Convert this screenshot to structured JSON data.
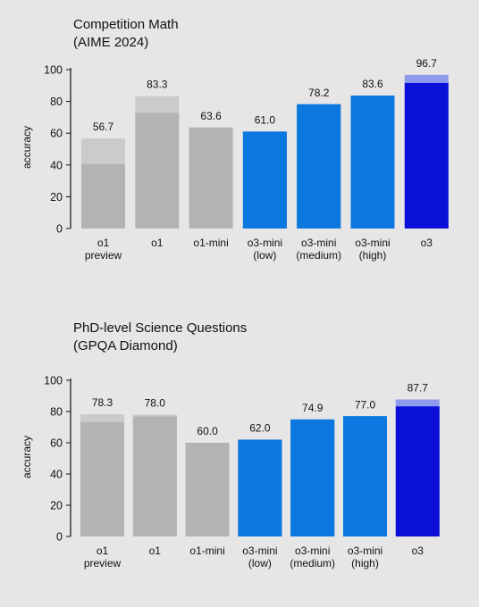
{
  "colors": {
    "gray_solid": "#b3b3b3",
    "gray_light": "#cbcbcb",
    "blue_o3mini": "#0a78de",
    "blue_o3": "#0a10d8",
    "blue_o3_light": "#8e9bea",
    "axis": "#111111",
    "background": "#e6e6e6"
  },
  "charts": [
    {
      "title_line1": "Competition Math",
      "title_line2": "(AIME 2024)",
      "ylabel": "accuracy"
    },
    {
      "title_line1": "PhD-level Science Questions",
      "title_line2": "(GPQA Diamond)",
      "ylabel": "accuracy"
    }
  ],
  "chart_data": [
    {
      "type": "bar",
      "title": "Competition Math (AIME 2024)",
      "ylabel": "accuracy",
      "ylim": [
        0,
        100
      ],
      "yticks": [
        0,
        20,
        40,
        60,
        80,
        100
      ],
      "categories": [
        [
          "o1",
          "preview"
        ],
        [
          "o1"
        ],
        [
          "o1-mini"
        ],
        [
          "o3-mini",
          "(low)"
        ],
        [
          "o3-mini",
          "(medium)"
        ],
        [
          "o3-mini",
          "(high)"
        ],
        [
          "o3"
        ]
      ],
      "series": [
        {
          "values": [
            40.5,
            72.8,
            63.6,
            61.0,
            78.2,
            83.6,
            91.6
          ]
        },
        {
          "values": [
            56.7,
            83.3,
            63.6,
            61.0,
            78.2,
            83.6,
            96.7
          ]
        }
      ],
      "value_labels": [
        "56.7",
        "83.3",
        "63.6",
        "61.0",
        "78.2",
        "83.6",
        "96.7"
      ],
      "bar_colors": [
        "gray",
        "gray",
        "gray",
        "o3mini",
        "o3mini",
        "o3mini",
        "o3"
      ],
      "grid": false,
      "legend": "none"
    },
    {
      "type": "bar",
      "title": "PhD-level Science Questions (GPQA Diamond)",
      "ylabel": "accuracy",
      "ylim": [
        0,
        100
      ],
      "yticks": [
        0,
        20,
        40,
        60,
        80,
        100
      ],
      "categories": [
        [
          "o1",
          "preview"
        ],
        [
          "o1"
        ],
        [
          "o1-mini"
        ],
        [
          "o3-mini",
          "(low)"
        ],
        [
          "o3-mini",
          "(medium)"
        ],
        [
          "o3-mini",
          "(high)"
        ],
        [
          "o3"
        ]
      ],
      "series": [
        {
          "values": [
            73.3,
            76.8,
            60.0,
            62.0,
            74.9,
            77.0,
            83.3
          ]
        },
        {
          "values": [
            78.3,
            78.0,
            60.0,
            62.0,
            74.9,
            77.0,
            87.7
          ]
        }
      ],
      "value_labels": [
        "78.3",
        "78.0",
        "60.0",
        "62.0",
        "74.9",
        "77.0",
        "87.7"
      ],
      "bar_colors": [
        "gray",
        "gray",
        "gray",
        "o3mini",
        "o3mini",
        "o3mini",
        "o3"
      ],
      "grid": false,
      "legend": "none"
    }
  ]
}
